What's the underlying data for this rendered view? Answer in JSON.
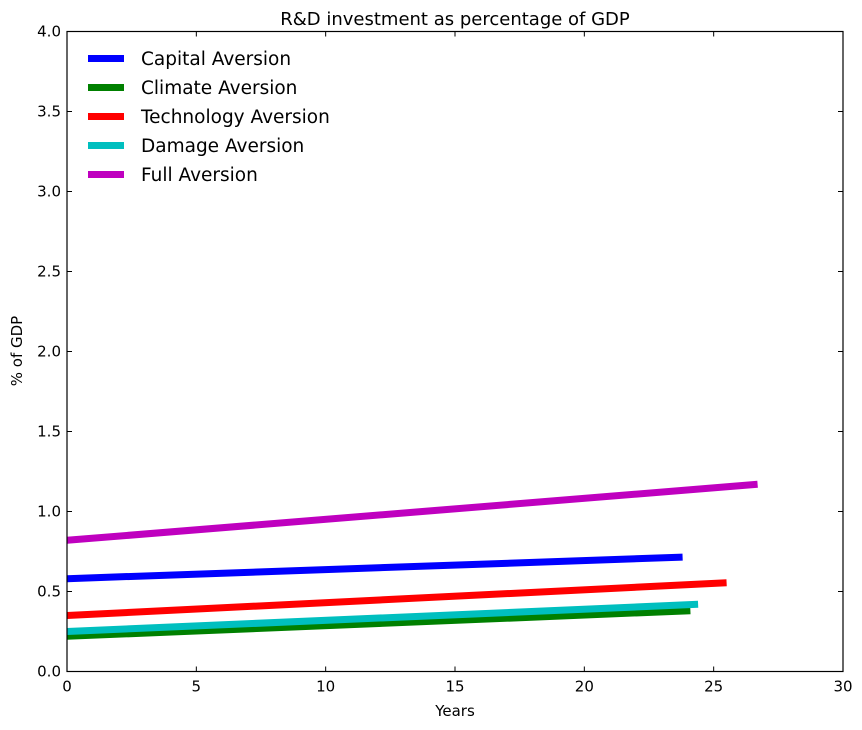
{
  "chart_data": {
    "type": "line",
    "title": "R&D investment as percentage of  GDP",
    "xlabel": "Years",
    "ylabel": "% of GDP",
    "xlim": [
      0,
      30
    ],
    "ylim": [
      0,
      4.0
    ],
    "xticks": [
      0,
      5,
      10,
      15,
      20,
      25,
      30
    ],
    "xtick_labels": [
      "0",
      "5",
      "10",
      "15",
      "20",
      "25",
      "30"
    ],
    "yticks": [
      0,
      0.5,
      1.0,
      1.5,
      2.0,
      2.5,
      3.0,
      3.5,
      4.0
    ],
    "ytick_labels": [
      "0.0",
      "0.5",
      "1.0",
      "1.5",
      "2.0",
      "2.5",
      "3.0",
      "3.5",
      "4.0"
    ],
    "grid": false,
    "legend_position": "top-left",
    "series": [
      {
        "name": "Capital Aversion",
        "color": "#0000ff",
        "x": [
          0,
          23.8
        ],
        "y": [
          0.58,
          0.715
        ]
      },
      {
        "name": "Climate Aversion",
        "color": "#008000",
        "x": [
          0,
          24.1
        ],
        "y": [
          0.22,
          0.38
        ]
      },
      {
        "name": "Technology Aversion",
        "color": "#ff0000",
        "x": [
          0,
          25.5
        ],
        "y": [
          0.35,
          0.555
        ]
      },
      {
        "name": "Damage Aversion",
        "color": "#00bfbf",
        "x": [
          0,
          24.4
        ],
        "y": [
          0.25,
          0.42
        ]
      },
      {
        "name": "Full Aversion",
        "color": "#bf00bf",
        "x": [
          0,
          26.7
        ],
        "y": [
          0.82,
          1.17
        ]
      }
    ]
  }
}
